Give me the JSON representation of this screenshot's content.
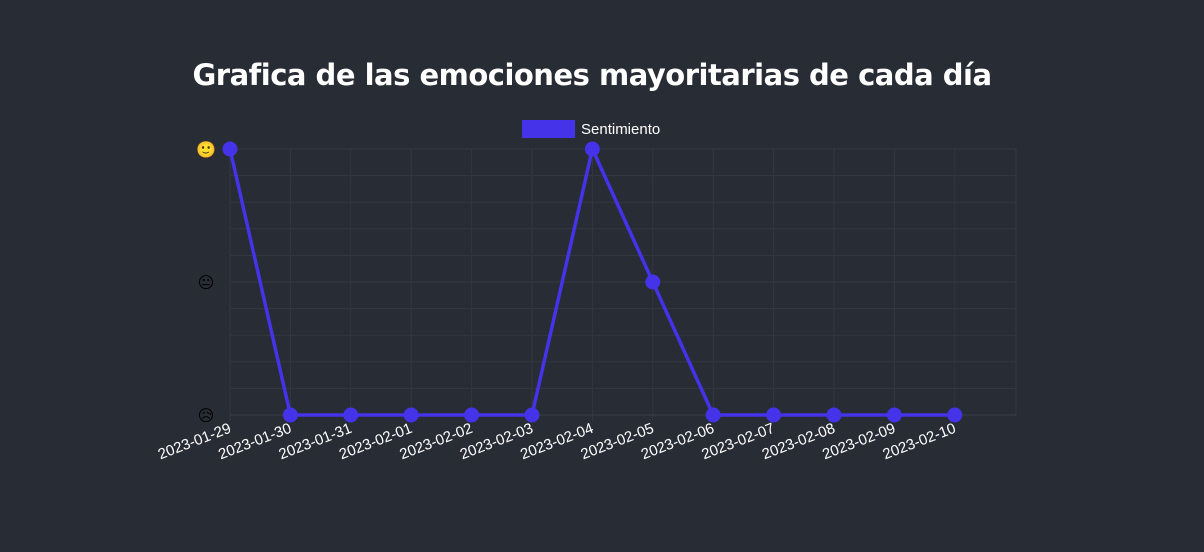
{
  "chart_data": {
    "type": "line",
    "title": "Grafica de las emociones mayoritarias de cada día",
    "legend": {
      "position": "top",
      "entries": [
        "Sentimiento"
      ]
    },
    "categories": [
      "2023-01-29",
      "2023-01-30",
      "2023-01-31",
      "2023-02-01",
      "2023-02-02",
      "2023-02-03",
      "2023-02-04",
      "2023-02-05",
      "2023-02-06",
      "2023-02-07",
      "2023-02-08",
      "2023-02-09",
      "2023-02-10"
    ],
    "y_ticks": [
      {
        "value": 2,
        "label": "🙂"
      },
      {
        "value": 1,
        "label": "😐"
      },
      {
        "value": 0,
        "label": "😥"
      }
    ],
    "ylim": [
      0,
      2
    ],
    "grid": true,
    "series": [
      {
        "name": "Sentimiento",
        "color": "#4433e8",
        "values": [
          2,
          0,
          0,
          0,
          0,
          0,
          2,
          1,
          0,
          0,
          0,
          0,
          0
        ]
      }
    ]
  }
}
